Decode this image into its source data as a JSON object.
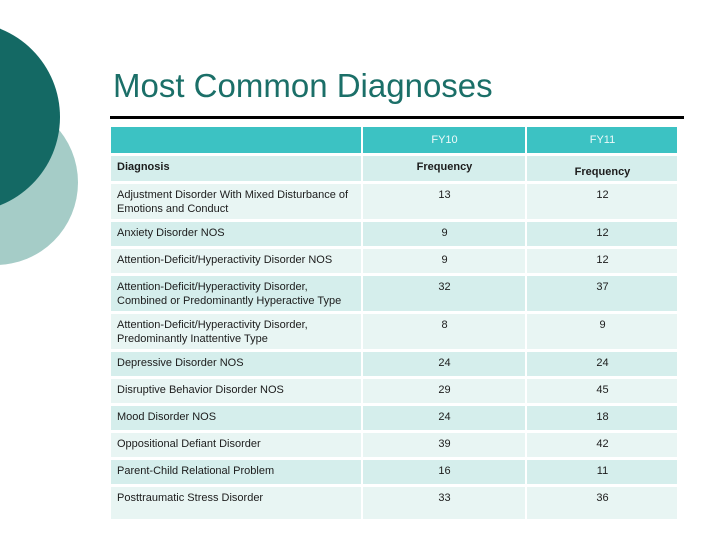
{
  "slide": {
    "title": "Most Common Diagnoses"
  },
  "table": {
    "year_row": {
      "blank": "",
      "fy10": "FY10",
      "fy11": "FY11"
    },
    "header_row": {
      "diagnosis": "Diagnosis",
      "fy10_freq": "Frequency",
      "fy11_freq": "Frequency"
    },
    "rows": [
      {
        "diagnosis": "Adjustment Disorder With Mixed Disturbance of Emotions and Conduct",
        "fy10": "13",
        "fy11": "12"
      },
      {
        "diagnosis": "Anxiety Disorder NOS",
        "fy10": "9",
        "fy11": "12"
      },
      {
        "diagnosis": "Attention-Deficit/Hyperactivity Disorder NOS",
        "fy10": "9",
        "fy11": "12"
      },
      {
        "diagnosis": "Attention-Deficit/Hyperactivity Disorder, Combined or Predominantly Hyperactive Type",
        "fy10": "32",
        "fy11": "37"
      },
      {
        "diagnosis": "Attention-Deficit/Hyperactivity Disorder, Predominantly Inattentive Type",
        "fy10": "8",
        "fy11": "9"
      },
      {
        "diagnosis": "Depressive Disorder NOS",
        "fy10": "24",
        "fy11": "24"
      },
      {
        "diagnosis": "Disruptive Behavior Disorder NOS",
        "fy10": "29",
        "fy11": "45"
      },
      {
        "diagnosis": "Mood Disorder NOS",
        "fy10": "24",
        "fy11": "18"
      },
      {
        "diagnosis": "Oppositional Defiant Disorder",
        "fy10": "39",
        "fy11": "42"
      },
      {
        "diagnosis": "Parent-Child Relational Problem",
        "fy10": "16",
        "fy11": "11"
      },
      {
        "diagnosis": "Posttraumatic Stress Disorder",
        "fy10": "33",
        "fy11": "36"
      }
    ]
  },
  "colors": {
    "title_text": "#1b6f68",
    "header_band": "#3cc2c3",
    "header_band_text": "#eefafa",
    "row_shaded": "#d5eeec",
    "row_plain": "#e8f5f3",
    "circle_dark": "#146964",
    "circle_light": "#a5ccc7",
    "rule": "#000000",
    "body_text": "#1c1c1c"
  }
}
